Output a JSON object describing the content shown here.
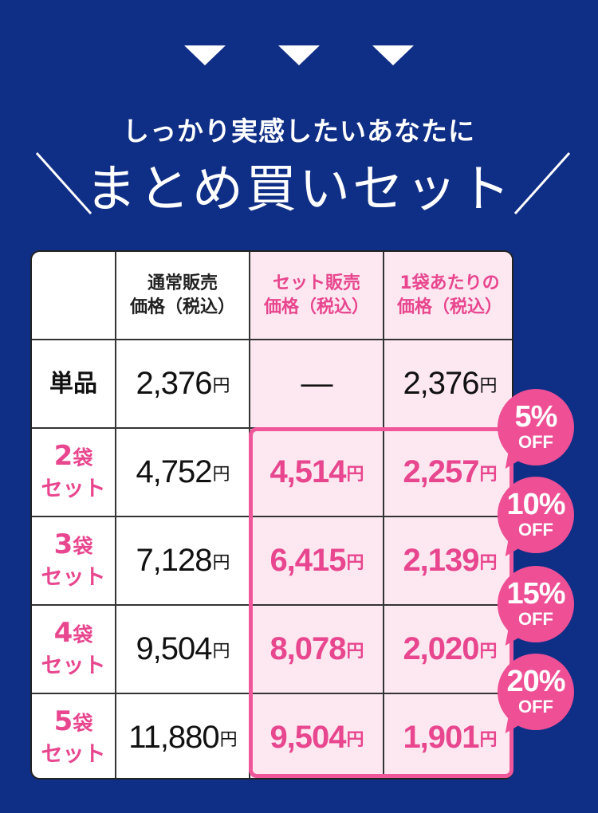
{
  "header": {
    "subtitle": "しっかり実感したいあなたに",
    "title": "まとめ買いセット"
  },
  "table": {
    "columns": [
      {
        "line1": "通常販売",
        "line2": "価格（税込）"
      },
      {
        "line1": "セット販売",
        "line2": "価格（税込）"
      },
      {
        "line1": "1袋あたりの",
        "line2": "価格（税込）"
      }
    ],
    "yen": "円",
    "rows": [
      {
        "label": "単品",
        "num": "",
        "fukuro": "",
        "set": "",
        "regular": "2,376",
        "set_price": "—",
        "per_bag": "2,376",
        "discount": ""
      },
      {
        "label": "",
        "num": "2",
        "fukuro": "袋",
        "set": "セット",
        "regular": "4,752",
        "set_price": "4,514",
        "per_bag": "2,257",
        "discount": "5%"
      },
      {
        "label": "",
        "num": "3",
        "fukuro": "袋",
        "set": "セット",
        "regular": "7,128",
        "set_price": "6,415",
        "per_bag": "2,139",
        "discount": "10%"
      },
      {
        "label": "",
        "num": "4",
        "fukuro": "袋",
        "set": "セット",
        "regular": "9,504",
        "set_price": "8,078",
        "per_bag": "2,020",
        "discount": "15%"
      },
      {
        "label": "",
        "num": "5",
        "fukuro": "袋",
        "set": "セット",
        "regular": "11,880",
        "set_price": "9,504",
        "per_bag": "1,901",
        "discount": "20%"
      }
    ],
    "off_label": "OFF"
  },
  "colors": {
    "background": "#0f2e86",
    "accent_pink": "#e8468e",
    "highlight_bg": "#fde8f1"
  }
}
